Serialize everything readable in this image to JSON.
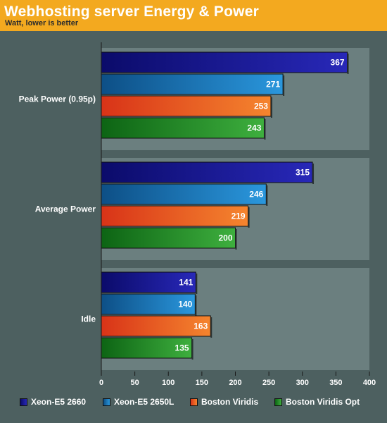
{
  "chart": {
    "title": "Webhosting server Energy & Power",
    "subtitle": "Watt, lower is better"
  },
  "colors": {
    "background": "#4d6060",
    "panel": "#6b7f7f",
    "header": "#f3a91f",
    "series": [
      {
        "dark": "#0b0b6a",
        "light": "#2828b8"
      },
      {
        "dark": "#0d4f86",
        "light": "#2a97dd"
      },
      {
        "dark": "#d83318",
        "light": "#f5852e"
      },
      {
        "dark": "#0d6414",
        "light": "#3eaf3e"
      }
    ]
  },
  "chart_data": {
    "type": "bar",
    "orientation": "horizontal",
    "categories": [
      "Peak Power (0.95p)",
      "Average Power",
      "Idle"
    ],
    "series": [
      {
        "name": "Xeon-E5 2660",
        "values": [
          367,
          315,
          141
        ]
      },
      {
        "name": "Xeon-E5 2650L",
        "values": [
          271,
          246,
          140
        ]
      },
      {
        "name": "Boston Viridis",
        "values": [
          253,
          219,
          163
        ]
      },
      {
        "name": "Boston Viridis Opt",
        "values": [
          243,
          200,
          135
        ]
      }
    ],
    "xlim": [
      0,
      400
    ],
    "xticks": [
      "0",
      "50",
      "100",
      "150",
      "200",
      "250",
      "300",
      "350",
      "400"
    ],
    "legend_position": "bottom",
    "data_labels": true
  }
}
